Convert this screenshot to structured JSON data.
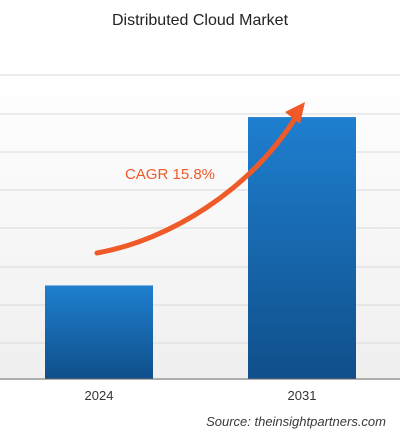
{
  "chart_data": {
    "type": "bar",
    "title": "Distributed Cloud Market",
    "categories": [
      "2024",
      "2031"
    ],
    "values": [
      1,
      2.8
    ],
    "xlabel": "",
    "ylabel": "",
    "ylim": [
      0,
      3.25
    ],
    "grid": true,
    "legend": "none",
    "annotation": "CAGR 15.8%"
  },
  "colors": {
    "bar_top": "#1f7fd0",
    "bar_bottom": "#0f4f8a",
    "arrow": "#f05a28",
    "annotation_text": "#f05a28",
    "grid": "#d9d9d9",
    "background": "#f0f0f0"
  },
  "source": {
    "text": "Source: theinsightpartners.com"
  }
}
